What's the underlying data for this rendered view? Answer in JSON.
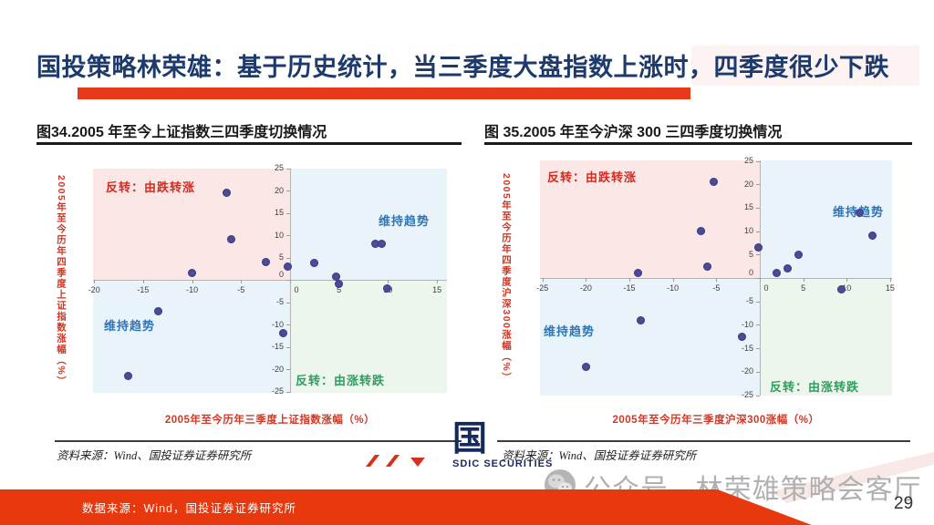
{
  "header": {
    "title": "国投策略林荣雄：基于历史统计，当三季度大盘指数上涨时，四季度很少下跌"
  },
  "figures": [
    {
      "source": "资料来源：Wind、国投证券证券研究所"
    },
    {
      "source": "资料来源：Wind、国投证券证券研究所"
    }
  ],
  "chart_data": [
    {
      "type": "scatter",
      "title": "图34.2005 年至今上证指数三四季度切换情况",
      "xlabel": "2005年至今历年三季度上证指数涨幅（%）",
      "ylabel": "2005年至今历年四季度上证指数涨幅（%）",
      "xlim": [
        -20,
        15
      ],
      "ylim": [
        -25,
        25
      ],
      "x_ticks": [
        -20,
        -15,
        -10,
        -5,
        0,
        5,
        10,
        15
      ],
      "y_ticks": [
        25,
        20,
        15,
        10,
        5,
        0,
        -5,
        -10,
        -15,
        -20,
        -25
      ],
      "points": [
        [
          -16.5,
          -21.5
        ],
        [
          -13.5,
          -7
        ],
        [
          -10,
          1.5
        ],
        [
          -6.5,
          19.5
        ],
        [
          -6,
          9
        ],
        [
          -2.5,
          4
        ],
        [
          -0.7,
          -12
        ],
        [
          -0.2,
          3
        ],
        [
          2.5,
          3.8
        ],
        [
          4.7,
          0.7
        ],
        [
          5,
          -1
        ],
        [
          8.7,
          8
        ],
        [
          9.4,
          8
        ],
        [
          9.9,
          -2
        ]
      ],
      "quadrant_labels": {
        "top_left": "反转：由跌转涨",
        "top_right": "维持趋势",
        "bottom_left": "维持趋势",
        "bottom_right": "反转：由涨转跌"
      }
    },
    {
      "type": "scatter",
      "title": "图 35.2005 年至今沪深 300 三四季度切换情况",
      "xlabel": "2005年至今历年三季度沪深300涨幅（%）",
      "ylabel": "2005年至今历年四季度沪深300涨幅（%）",
      "xlim": [
        -25,
        15
      ],
      "ylim": [
        -25,
        25
      ],
      "x_ticks": [
        -25,
        -20,
        -15,
        -10,
        -5,
        0,
        5,
        10,
        15
      ],
      "y_ticks": [
        25,
        20,
        15,
        10,
        5,
        0,
        -5,
        -10,
        -15,
        -20,
        -25
      ],
      "points": [
        [
          -20,
          -19
        ],
        [
          -14,
          1
        ],
        [
          -13.7,
          -9
        ],
        [
          -6.8,
          10
        ],
        [
          -6,
          2.5
        ],
        [
          -5.3,
          20.5
        ],
        [
          -2,
          -12.5
        ],
        [
          -0.2,
          6.5
        ],
        [
          1.9,
          1
        ],
        [
          3.2,
          2
        ],
        [
          4.5,
          5
        ],
        [
          9.4,
          -2.5
        ],
        [
          11.5,
          14
        ],
        [
          13,
          9
        ]
      ],
      "quadrant_labels": {
        "top_left": "反转：由跌转涨",
        "top_right": "维持趋势",
        "bottom_left": "维持趋势",
        "bottom_right": "反转：由涨转跌"
      }
    }
  ],
  "footer": {
    "bar_text": "数据来源：Wind，国投证券证券研究所",
    "watermark_text": "公众号 · 林荣雄策略会客厅",
    "brand_glyph": "国",
    "brand_name": "SDIC SECURITIES",
    "page_number": "29"
  },
  "colors": {
    "navy_title": "#1d3a6d",
    "accent_red": "#e5391a",
    "footer_red": "#e8380d",
    "quad_pink": "#fbe7e6",
    "quad_blue": "#e9f3fa",
    "quad_green": "#edf6ed",
    "dot": "#4c4c99",
    "label_red": "#d62a1e",
    "label_blue": "#2e75b6",
    "label_green": "#2f9e5f",
    "axis_title_red": "#cf3825"
  }
}
